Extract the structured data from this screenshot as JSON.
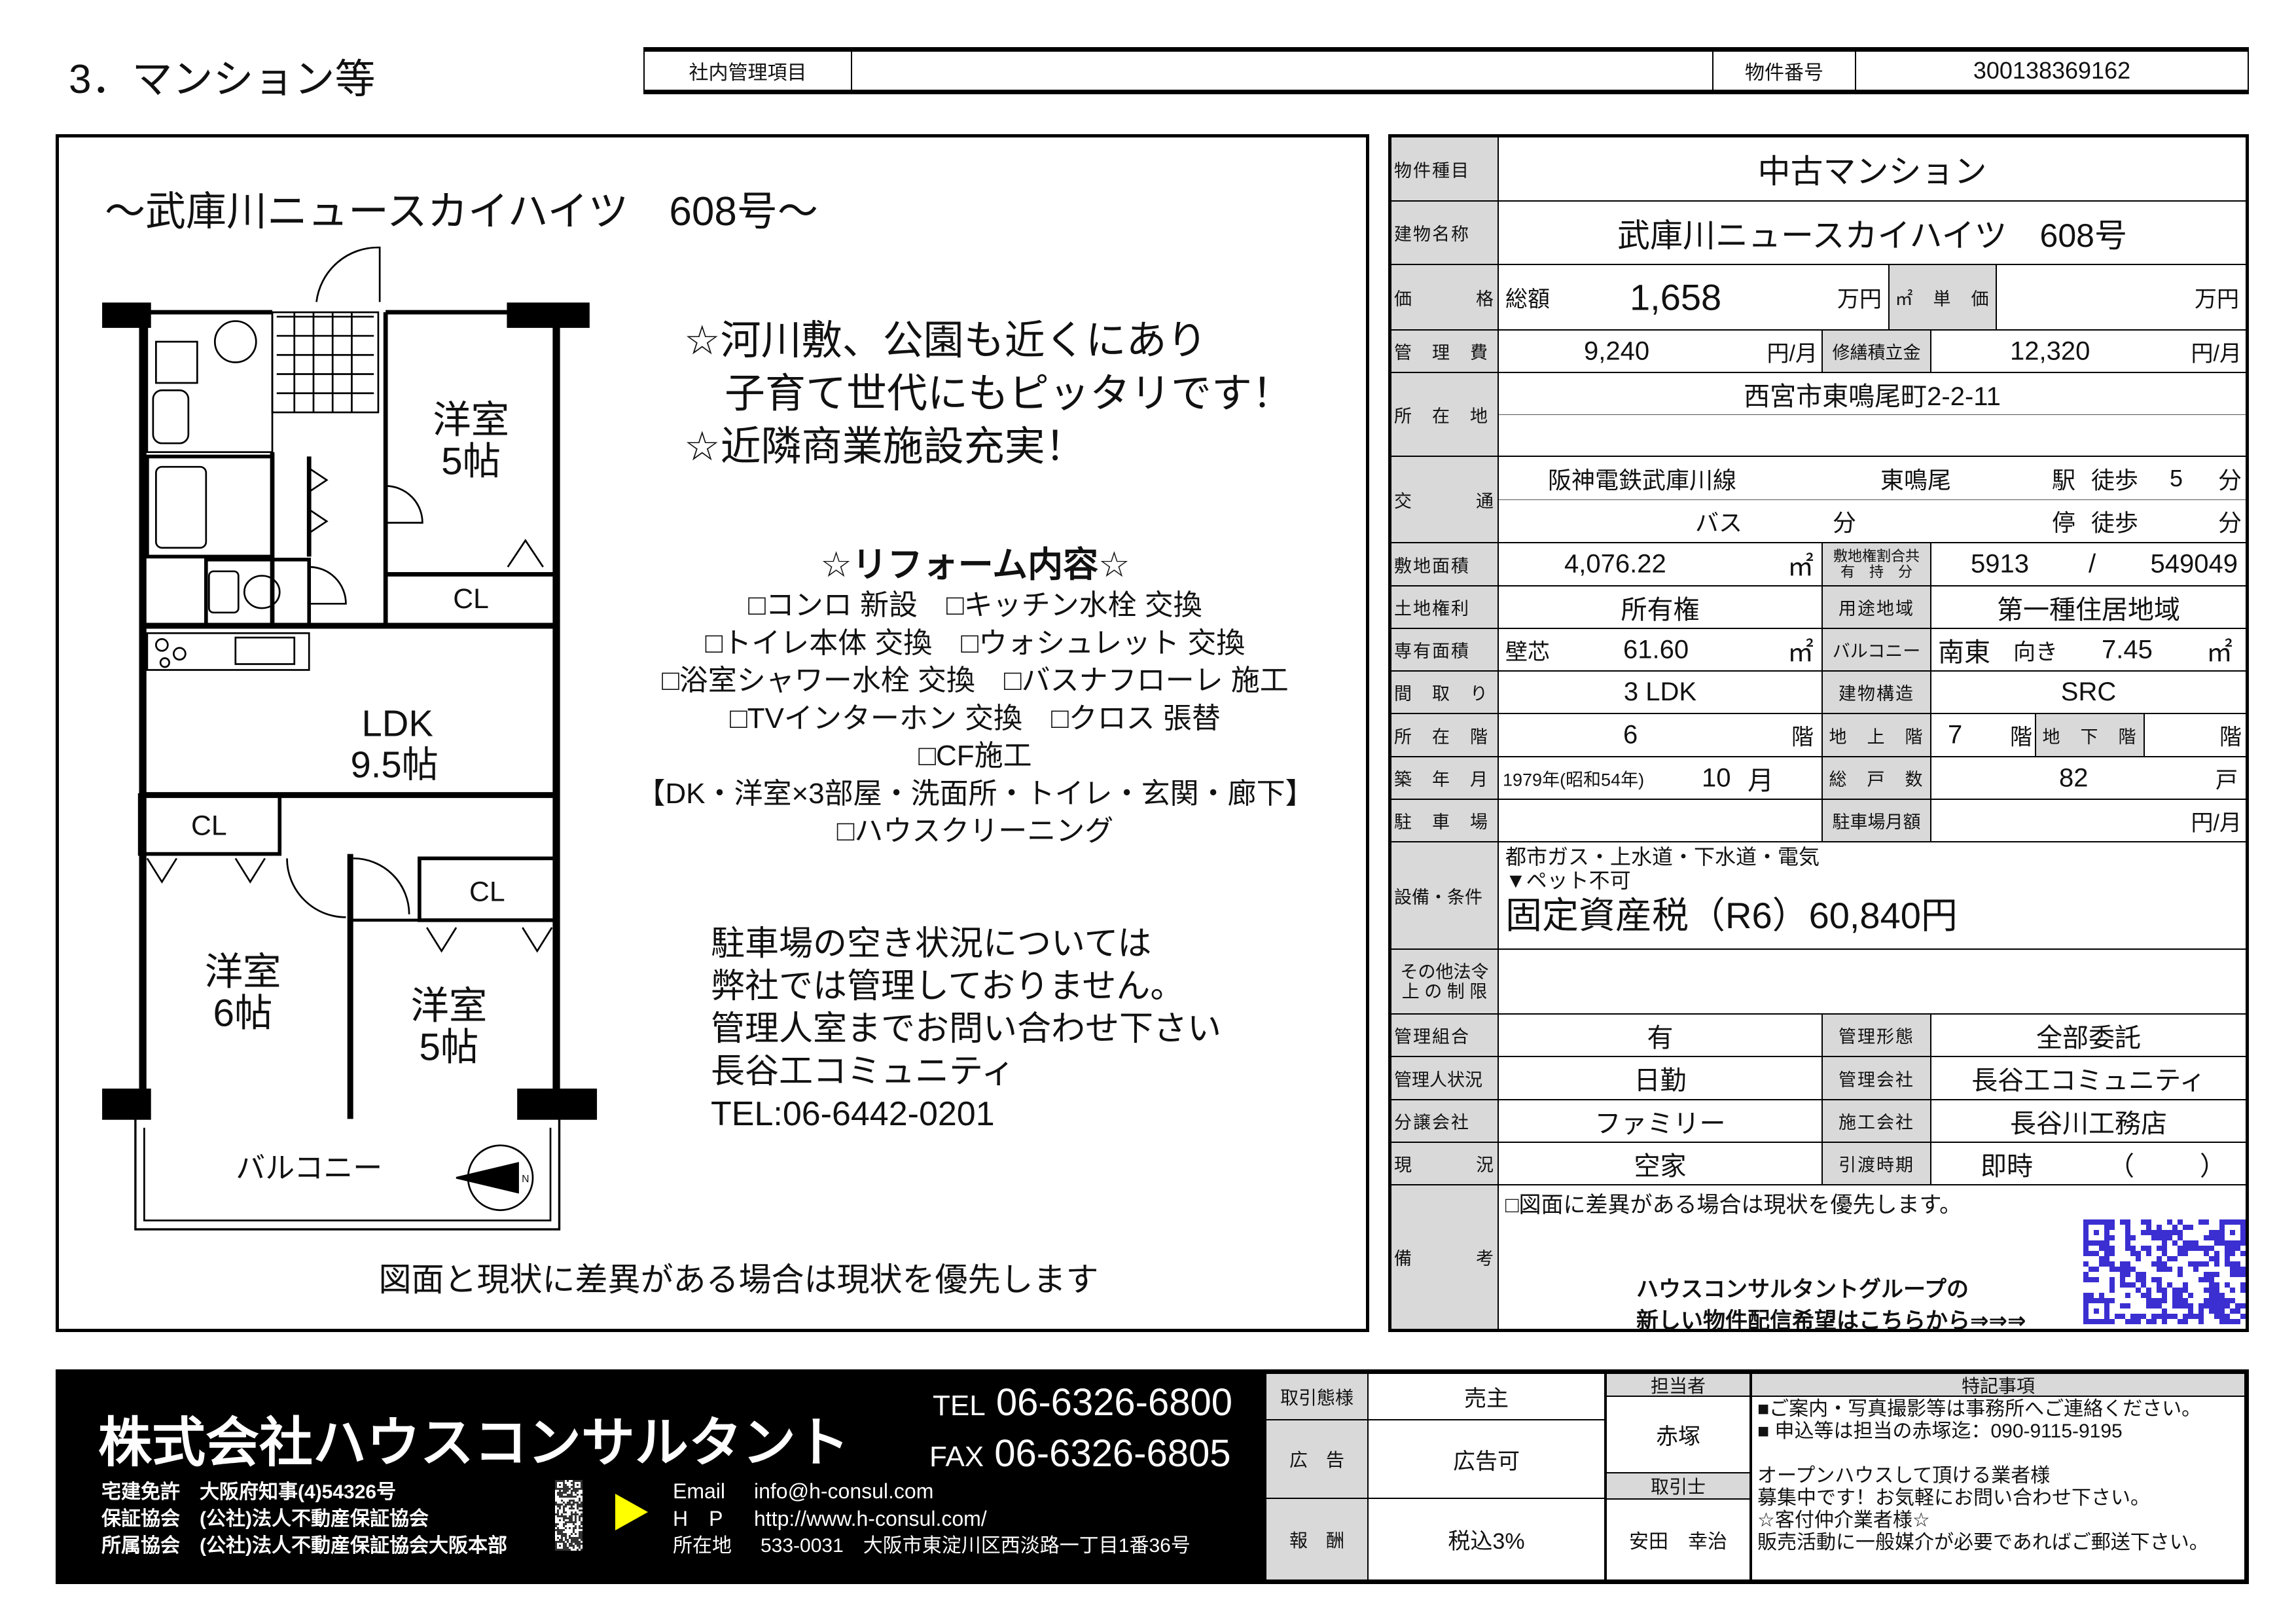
{
  "header": {
    "title": "3．マンション等",
    "internal_label": "社内管理項目",
    "internal_value": "",
    "property_no_label": "物件番号",
    "property_no": "300138369162"
  },
  "left": {
    "title": "～武庫川ニュースカイハイツ　608号～",
    "promo": [
      "☆河川敷、公園も近くにあり",
      "　子育て世代にもピッタリです！",
      "☆近隣商業施設充実！"
    ],
    "reform_title": "☆リフォーム内容☆",
    "reform_items": [
      "□コンロ 新設　□キッチン水栓 交換",
      "□トイレ本体 交換　□ウォシュレット 交換",
      "□浴室シャワー水栓 交換　□バスナフローレ 施工",
      "□TVインターホン 交換　□クロス 張替",
      "□CF施工",
      "【DK・洋室×3部屋・洗面所・トイレ・玄関・廊下】",
      "□ハウスクリーニング"
    ],
    "parking_note": [
      "駐車場の空き状況については",
      "弊社では管理しておりません。",
      "管理人室までお問い合わせ下さい",
      "長谷工コミュニティ",
      "TEL:06-6442-0201"
    ],
    "footer_note": "図面と現状に差異がある場合は現状を優先します",
    "floorplan": {
      "room1": "洋室",
      "room1_size": "5帖",
      "cl1": "CL",
      "ldk": "LDK",
      "ldk_size": "9.5帖",
      "cl2": "CL",
      "room2": "洋室",
      "room2_size": "6帖",
      "cl3": "CL",
      "room3": "洋室",
      "room3_size": "5帖",
      "balcony": "バルコニー",
      "compass": "N"
    }
  },
  "spec": {
    "type_label": "物件種目",
    "type": "中古マンション",
    "name_label": "建物名称",
    "name": "武庫川ニュースカイハイツ　608号",
    "price_label_a": "価",
    "price_label_b": "格",
    "total_label": "総額",
    "price": "1,658",
    "price_unit": "万円",
    "unit_price_label": "㎡　単　価",
    "unit_price_unit": "万円",
    "mgmt_fee_label": "管　理　費",
    "mgmt_fee": "9,240",
    "yen_month": "円/月",
    "repair_label": "修繕積立金",
    "repair": "12,320",
    "address_label": "所　在　地",
    "address": "西宮市東鳴尾町2-2-11",
    "transport_label_a": "交",
    "transport_label_b": "通",
    "line": "阪神電鉄武庫川線",
    "station": "東鳴尾",
    "station_label": "駅",
    "walk_label": "徒歩",
    "walk_min": "5",
    "min_label": "分",
    "bus_label": "バス",
    "stop_label": "停",
    "land_area_label": "敷地面積",
    "land_area": "4,076.22",
    "sqm": "㎡",
    "share_label_1": "敷地権割合共",
    "share_label_2": "有　持　分",
    "share_num": "5913",
    "share_slash": "/",
    "share_den": "549049",
    "land_right_label": "土地権利",
    "land_right": "所有権",
    "zoning_label": "用途地域",
    "zoning": "第一種住居地域",
    "area_label": "専有面積",
    "area_basis": "壁芯",
    "area": "61.60",
    "balcony_label": "バルコニー",
    "balcony_dir": "南東",
    "facing": "向き",
    "balcony_area": "7.45",
    "layout_label": "間　取　り",
    "layout": "3 LDK",
    "structure_label": "建物構造",
    "structure": "SRC",
    "floor_label": "所　在　階",
    "floor": "6",
    "floor_unit": "階",
    "above_label": "地　上　階",
    "above": "7",
    "below_label": "地　下　階",
    "built_label": "築　年　月",
    "built_year": "1979年(昭和54年)",
    "built_month": "10",
    "month_unit": "月",
    "units_label": "総　戸　数",
    "units": "82",
    "units_unit": "戸",
    "parking_label": "駐　車　場",
    "parking_fee_label": "駐車場月額",
    "facilities_label": "設備・条件",
    "facilities": [
      "都市ガス・上水道・下水道・電気",
      "▼ペット不可"
    ],
    "tax": "固定資産税（R6）60,840円",
    "other_label_1": "その他法令",
    "other_label_2": "上 の 制 限",
    "assoc_label": "管理組合",
    "assoc": "有",
    "mgmt_form_label": "管理形態",
    "mgmt_form": "全部委託",
    "manager_label": "管理人状況",
    "manager": "日勤",
    "mgmt_co_label": "管理会社",
    "mgmt_co": "長谷工コミュニティ",
    "developer_label": "分譲会社",
    "developer": "ファミリー",
    "builder_label": "施工会社",
    "builder": "長谷川工務店",
    "status_label_a": "現",
    "status_label_b": "況",
    "status": "空家",
    "handover_label": "引渡時期",
    "handover": "即時",
    "handover_paren_open": "（",
    "handover_paren_close": "）",
    "remarks_label_a": "備",
    "remarks_label_b": "考",
    "remarks": "□図面に差異がある場合は現状を優先します。",
    "group_line1": "ハウスコンサルタントグループの",
    "group_line2": "新しい物件配信希望はこちらから⇒⇒⇒"
  },
  "company": {
    "name": "株式会社ハウスコンサルタント",
    "tel_label": "TEL",
    "tel": "06-6326-6800",
    "fax_label": "FAX",
    "fax": "06-6326-6805",
    "license": [
      "宅建免許　大阪府知事(4)54326号",
      "保証協会　(公社)法人不動産保証協会",
      "所属協会　(公社)法人不動産保証協会大阪本部"
    ],
    "email_label": "Email",
    "email": "info@h-consul.com",
    "hp_label": "H　P",
    "hp": "http://www.h-consul.com/",
    "addr_label": "所在地",
    "addr": "533-0031　大阪市東淀川区西淡路一丁目1番36号"
  },
  "deal": {
    "mode_label": "取引態様",
    "mode": "売主",
    "ad_label": "広　告",
    "ad": "広告可",
    "fee_label": "報　酬",
    "fee": "税込3%",
    "staff_label": "担当者",
    "staff": "赤塚",
    "agent_label": "取引士",
    "agent": "安田　幸治",
    "notes_label": "特記事項",
    "notes": [
      "■ご案内・写真撮影等は事務所へご連絡ください。",
      "■ 申込等は担当の赤塚迄：090-9115-9195",
      "",
      "オープンハウスして頂ける業者様",
      "募集中です！お気軽にお問い合わせ下さい。",
      "☆客付仲介業者様☆",
      "販売活動に一般媒介が必要であればご郵送下さい。"
    ]
  },
  "colors": {
    "label_bg": "#d9d9d9",
    "qr_blue": "#3b2fd1",
    "arrow_yellow": "#ffff00"
  }
}
